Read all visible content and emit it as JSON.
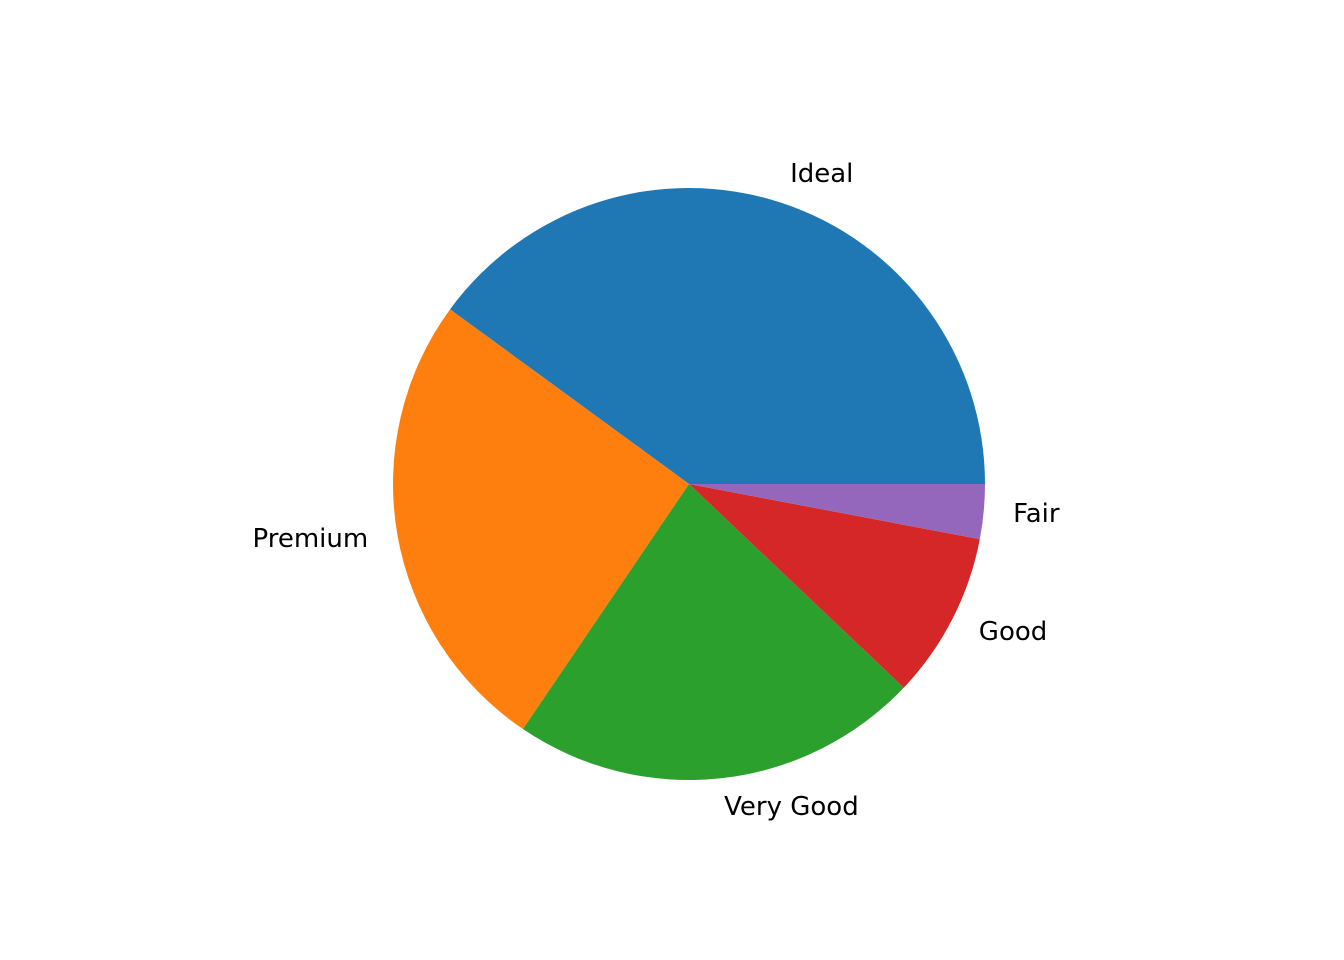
{
  "chart_data": {
    "type": "pie",
    "title": "",
    "labels": [
      "Ideal",
      "Premium",
      "Very Good",
      "Good",
      "Fair"
    ],
    "values": [
      21551,
      13791,
      12082,
      4906,
      1610
    ],
    "colors": [
      "#1f77b4",
      "#ff7f0e",
      "#2ca02c",
      "#d62728",
      "#9467bd"
    ],
    "start_angle_deg": 0,
    "direction": "counterclockwise"
  }
}
